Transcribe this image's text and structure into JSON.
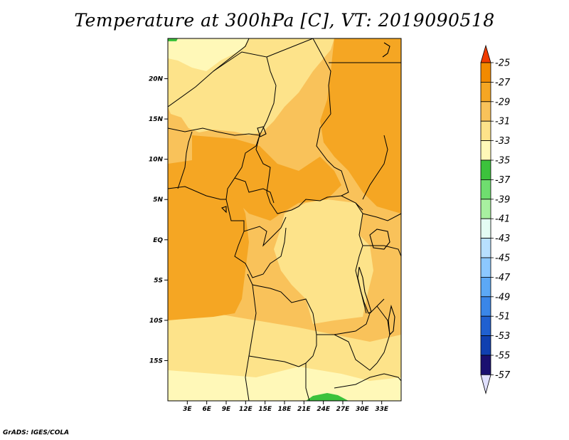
{
  "title": "Temperature at 300hPa [C], VT: 2019090518",
  "credit": "GrADS: IGES/COLA",
  "map": {
    "lon_range": [
      0,
      36
    ],
    "lat_range": [
      -20,
      25
    ],
    "lon_ticks": [
      "3E",
      "6E",
      "9E",
      "12E",
      "15E",
      "18E",
      "21E",
      "24E",
      "27E",
      "30E",
      "33E"
    ],
    "lat_ticks": [
      "20N",
      "15N",
      "10N",
      "5N",
      "EQ",
      "5S",
      "10S",
      "15S"
    ]
  },
  "colorbar": {
    "labels": [
      "-25",
      "-27",
      "-29",
      "-31",
      "-33",
      "-35",
      "-37",
      "-39",
      "-41",
      "-43",
      "-45",
      "-47",
      "-49",
      "-51",
      "-53",
      "-55",
      "-57"
    ],
    "colors": [
      "#f05a00",
      "#f28a00",
      "#f5a623",
      "#f9c25a",
      "#fde38a",
      "#fff8b8",
      "#3cc23c",
      "#6fde6f",
      "#a8f0a0",
      "#e4fcf4",
      "#b8e0ff",
      "#8cc8ff",
      "#5ca8f5",
      "#3a86e8",
      "#2060d0",
      "#1040b0",
      "#1a1070",
      "#e0e0ff"
    ],
    "top_arrow_color": "#f03c00",
    "bottom_arrow_color": "#e0e0ff"
  },
  "fields": {
    "base_color": "#f9c25a",
    "warm_color": "#f5a623",
    "cool_color": "#fde38a",
    "coolest_color": "#fff8b8",
    "green_color": "#3cc23c"
  }
}
